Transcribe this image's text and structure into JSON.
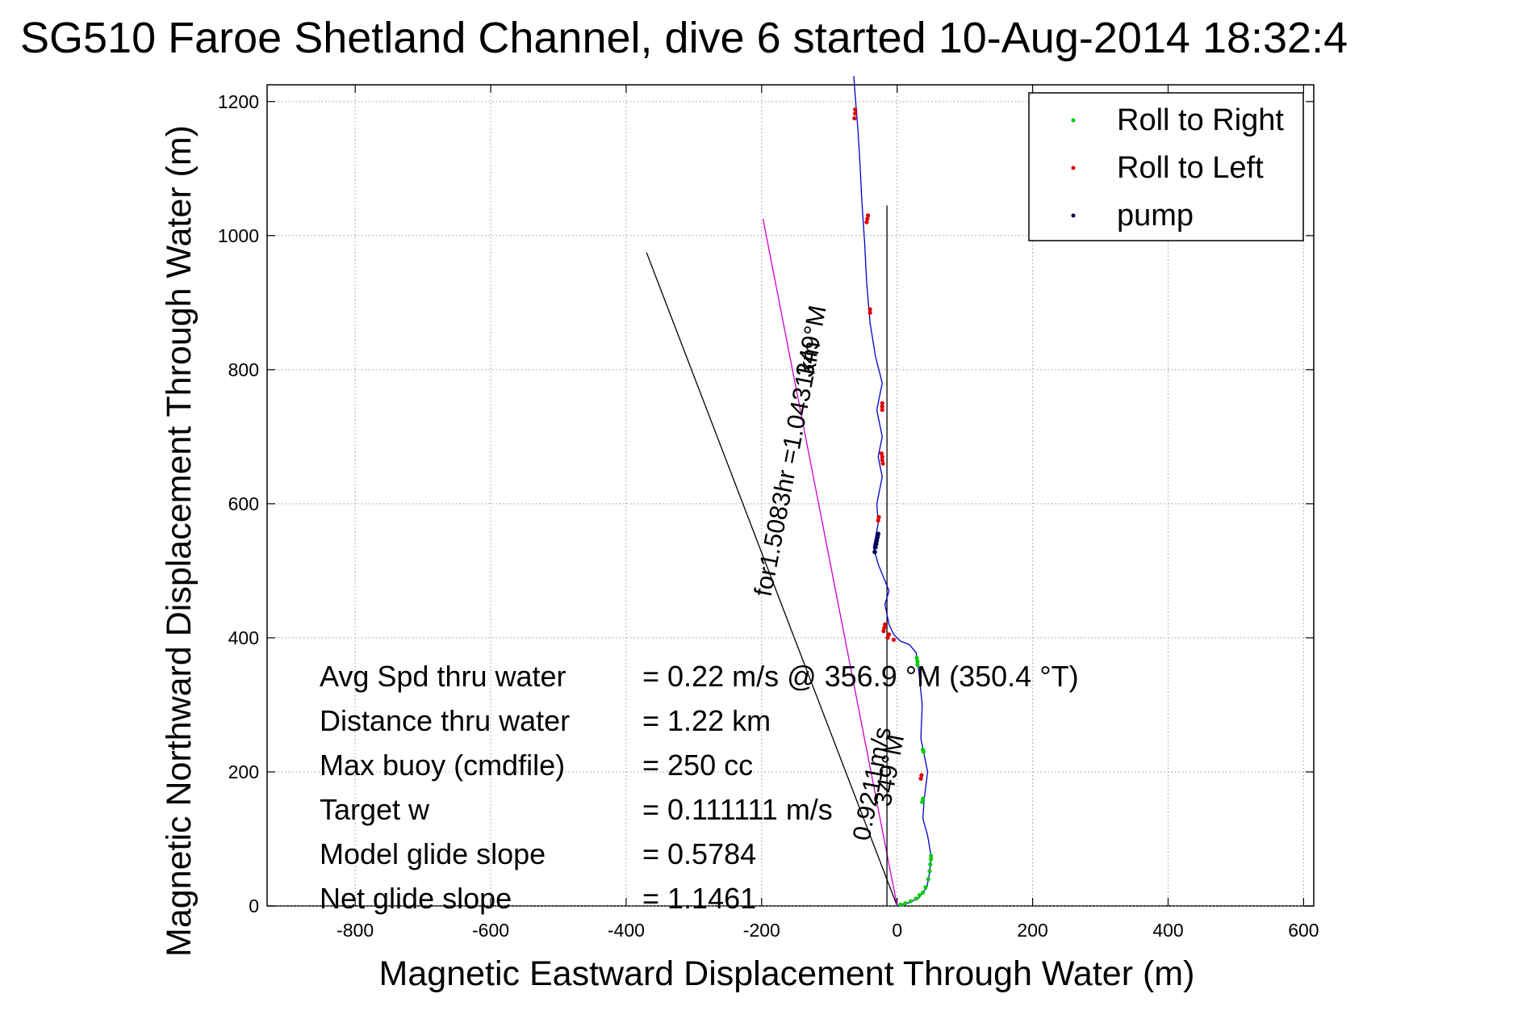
{
  "chart_data": {
    "type": "line",
    "title": "SG510 Faroe Shetland Channel, dive 6 started 10-Aug-2014 18:32:4",
    "xlabel": "Magnetic Eastward Displacement Through Water (m)",
    "ylabel": "Magnetic Northward Displacement Through Water (m)",
    "xlim": [
      -930,
      615
    ],
    "ylim": [
      0,
      1225
    ],
    "xticks": [
      -800,
      -600,
      -400,
      -200,
      0,
      200,
      400,
      600
    ],
    "yticks": [
      0,
      200,
      400,
      600,
      800,
      1000,
      1200
    ],
    "xtick_labels": [
      "-800",
      "-600",
      "-400",
      "-200",
      "0",
      "200",
      "400",
      "600"
    ],
    "ytick_labels": [
      "0",
      "200",
      "400",
      "600",
      "800",
      "1000",
      "1200"
    ],
    "grid": true,
    "legend_position": "top-right",
    "legend": [
      {
        "label": "Roll to Right",
        "color": "#00cc00"
      },
      {
        "label": "Roll to Left",
        "color": "#dd0000"
      },
      {
        "label": "pump",
        "color": "#000055"
      }
    ],
    "track": {
      "color": "#0000cc",
      "points": [
        [
          0,
          0
        ],
        [
          18,
          5
        ],
        [
          32,
          12
        ],
        [
          44,
          28
        ],
        [
          48,
          50
        ],
        [
          50,
          75
        ],
        [
          45,
          105
        ],
        [
          38,
          130
        ],
        [
          40,
          160
        ],
        [
          45,
          200
        ],
        [
          35,
          250
        ],
        [
          37,
          300
        ],
        [
          32,
          350
        ],
        [
          28,
          378
        ],
        [
          18,
          390
        ],
        [
          5,
          395
        ],
        [
          -5,
          405
        ],
        [
          -12,
          420
        ],
        [
          -18,
          450
        ],
        [
          -12,
          470
        ],
        [
          -28,
          510
        ],
        [
          -35,
          535
        ],
        [
          -28,
          570
        ],
        [
          -30,
          600
        ],
        [
          -22,
          640
        ],
        [
          -28,
          670
        ],
        [
          -22,
          700
        ],
        [
          -30,
          740
        ],
        [
          -22,
          780
        ],
        [
          -32,
          820
        ],
        [
          -40,
          870
        ],
        [
          -45,
          930
        ],
        [
          -48,
          990
        ],
        [
          -52,
          1050
        ],
        [
          -55,
          1110
        ],
        [
          -58,
          1160
        ],
        [
          -62,
          1210
        ],
        [
          -64,
          1238
        ]
      ]
    },
    "roll_right": [
      [
        5,
        2
      ],
      [
        12,
        4
      ],
      [
        20,
        7
      ],
      [
        28,
        11
      ],
      [
        33,
        16
      ],
      [
        38,
        20
      ],
      [
        42,
        28
      ],
      [
        46,
        40
      ],
      [
        48,
        52
      ],
      [
        49,
        62
      ],
      [
        50,
        70
      ],
      [
        50,
        75
      ],
      [
        30,
        360
      ],
      [
        30,
        365
      ],
      [
        29,
        370
      ],
      [
        39,
        230
      ],
      [
        38,
        233
      ],
      [
        38,
        160
      ],
      [
        37,
        155
      ]
    ],
    "roll_left": [
      [
        -63,
        1175
      ],
      [
        -62,
        1182
      ],
      [
        -62,
        1188
      ],
      [
        -45,
        1020
      ],
      [
        -44,
        1025
      ],
      [
        -43,
        1030
      ],
      [
        -40,
        885
      ],
      [
        -40,
        890
      ],
      [
        -22,
        740
      ],
      [
        -22,
        745
      ],
      [
        -22,
        750
      ],
      [
        -21,
        660
      ],
      [
        -22,
        665
      ],
      [
        -22,
        670
      ],
      [
        -23,
        675
      ],
      [
        -28,
        575
      ],
      [
        -27,
        580
      ],
      [
        -20,
        410
      ],
      [
        -19,
        415
      ],
      [
        -18,
        420
      ],
      [
        -14,
        400
      ],
      [
        -12,
        405
      ],
      [
        35,
        190
      ],
      [
        36,
        195
      ],
      [
        -5,
        397
      ]
    ],
    "pump": [
      [
        -33,
        528
      ],
      [
        -32,
        535
      ],
      [
        -31,
        540
      ],
      [
        -30,
        545
      ],
      [
        -29,
        550
      ],
      [
        -28,
        555
      ]
    ],
    "lines": [
      {
        "name": "",
        "color": "#000000",
        "points": [
          [
            0,
            0
          ],
          [
            -370,
            975
          ]
        ],
        "label": ""
      },
      {
        "name": "",
        "color": "#cc00cc",
        "points": [
          [
            0,
            0
          ],
          [
            -198,
            1025
          ]
        ],
        "label": ""
      },
      {
        "name": "",
        "color": "#000000",
        "points": [
          [
            -15,
            0
          ],
          [
            -15,
            1045
          ]
        ],
        "label": ""
      }
    ],
    "line_labels": [
      {
        "text": "for1.5083hr =1.0431km",
        "anchor": [
          -150,
          650
        ],
        "angle": -79
      },
      {
        "text": "349°M",
        "anchor": [
          -115,
          840
        ],
        "angle": -79
      },
      {
        "text": "0.9211m/s",
        "anchor": [
          -25,
          180
        ],
        "angle": -79
      },
      {
        "text": "349°M",
        "anchor": [
          0,
          200
        ],
        "angle": -79
      }
    ],
    "stats": [
      {
        "label": "Avg Spd thru water",
        "value": "=  0.22 m/s @ 356.9 °M (350.4 °T)"
      },
      {
        "label": "Distance thru water",
        "value": "=  1.22 km"
      },
      {
        "label": "Max buoy (cmdfile)",
        "value": "= 250 cc"
      },
      {
        "label": "Target w",
        "value": "= 0.111111 m/s"
      },
      {
        "label": "Model glide slope",
        "value": "= 0.5784"
      },
      {
        "label": "Net glide slope",
        "value": "= 1.1461"
      }
    ]
  }
}
